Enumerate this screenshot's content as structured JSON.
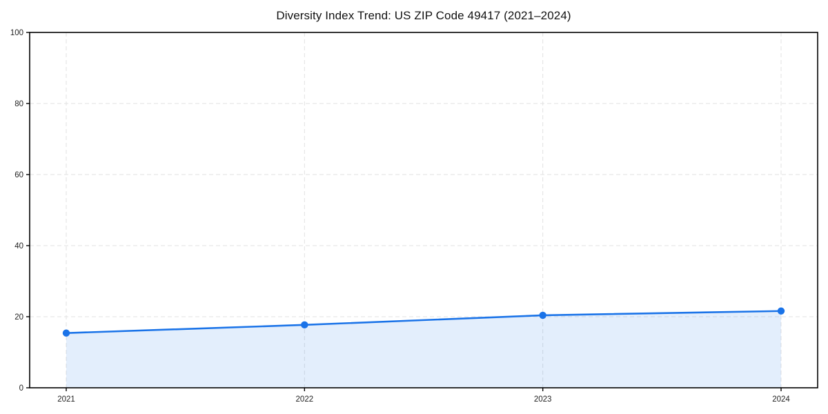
{
  "page": {
    "background": "#ffffff"
  },
  "chart_data": {
    "type": "area",
    "title": "Diversity Index Trend: US ZIP Code 49417 (2021–2024)",
    "categories": [
      "2021",
      "2022",
      "2023",
      "2024"
    ],
    "series": [
      {
        "name": "Diversity Index",
        "values": [
          15.4,
          17.7,
          20.4,
          21.6
        ]
      }
    ],
    "xlabel": "",
    "ylabel": "",
    "ylim": [
      0,
      100
    ],
    "yticks": [
      0,
      20,
      40,
      60,
      80,
      100
    ],
    "grid": "dashed gridlines on both axes",
    "legend": "none",
    "markers": "filled circles at each data point",
    "colors": {
      "line": "#1a73e8",
      "marker": "#1a73e8",
      "fill": "rgba(26,115,232,0.12)",
      "gridline": "#e2e2e2",
      "spine": "#000000",
      "tick_label": "#1f1f1f",
      "title": "#111111",
      "background": "#ffffff"
    }
  }
}
